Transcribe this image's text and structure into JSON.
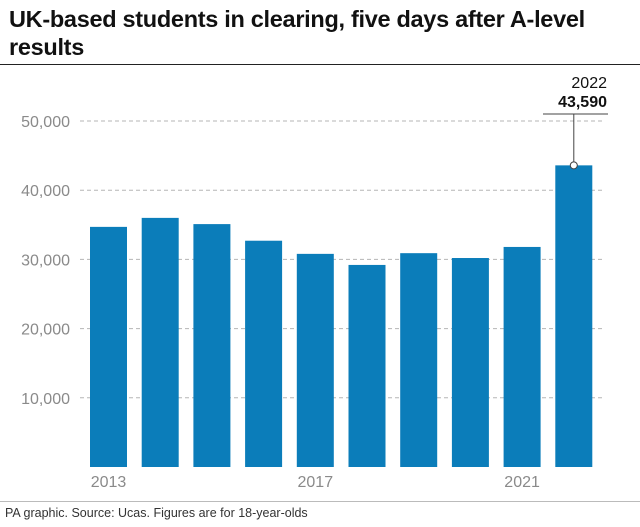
{
  "title": "UK-based students in clearing, five days after A-level results",
  "source": "PA graphic. Source: Ucas. Figures are for 18-year-olds",
  "colors": {
    "bar": "#0b7dba",
    "grid": "#b5b5b5",
    "axis_text": "#8a8a8a",
    "text": "#111111"
  },
  "chart_data": {
    "type": "bar",
    "title": "UK-based students in clearing, five days after A-level results",
    "xlabel": "",
    "ylabel": "",
    "categories": [
      "2013",
      "2014",
      "2015",
      "2016",
      "2017",
      "2018",
      "2019",
      "2020",
      "2021",
      "2022"
    ],
    "values": [
      34700,
      36000,
      35100,
      32700,
      30800,
      29200,
      30900,
      30200,
      31800,
      43590
    ],
    "x_tick_labels": [
      "2013",
      "2017",
      "2021"
    ],
    "y_ticks": [
      10000,
      20000,
      30000,
      40000,
      50000
    ],
    "y_tick_labels": [
      "10,000",
      "20,000",
      "30,000",
      "40,000",
      "50,000"
    ],
    "ylim": [
      0,
      50000
    ],
    "grid": true,
    "annotation": {
      "category": "2022",
      "label_year": "2022",
      "label_value": "43,590"
    }
  }
}
